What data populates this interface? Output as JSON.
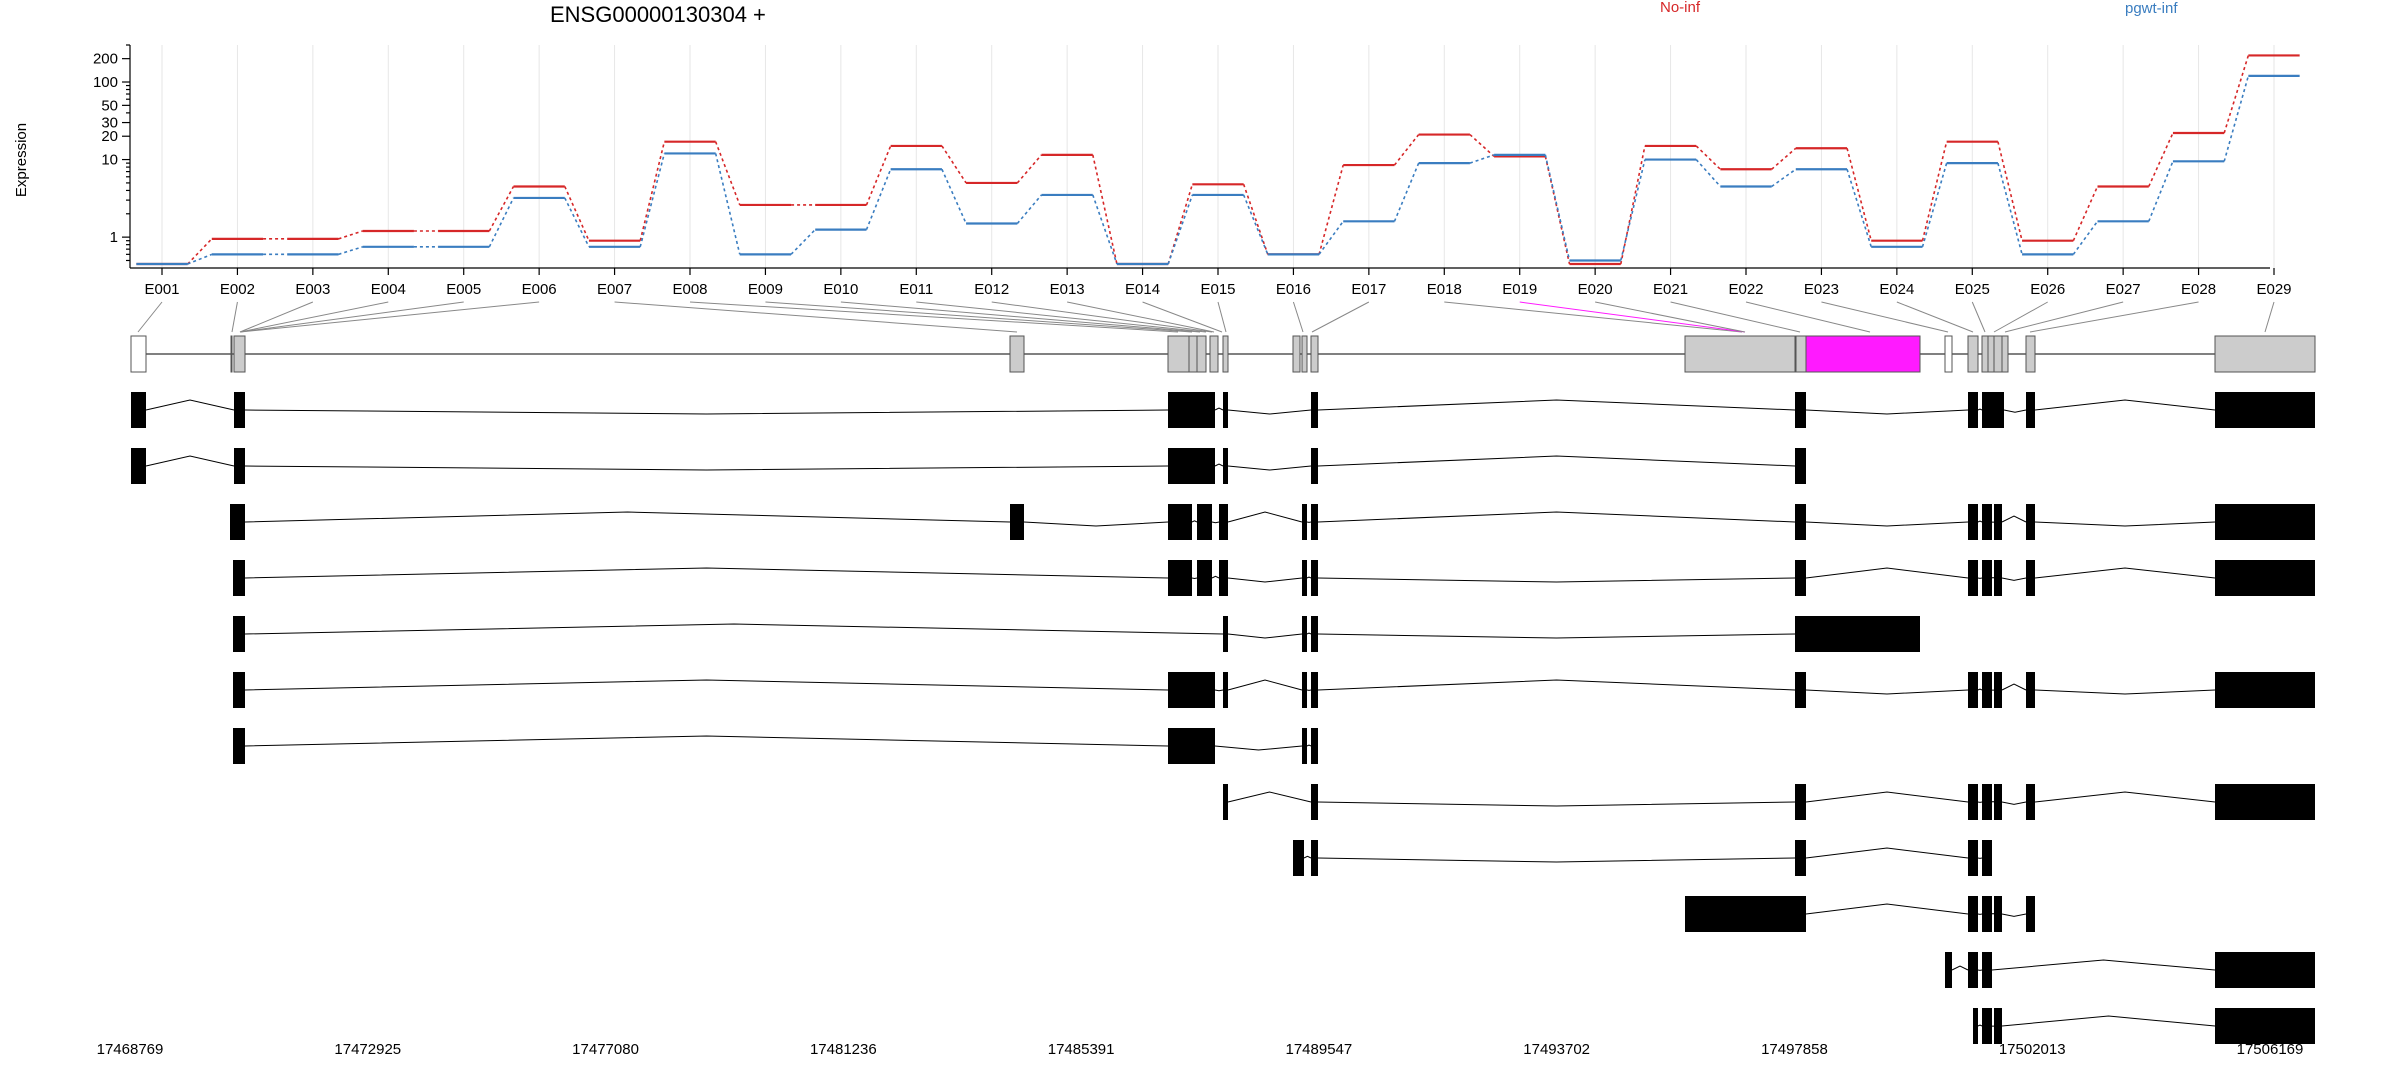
{
  "chart_data": {
    "type": "line",
    "title": "ENSG00000130304 +",
    "ylabel": "Expression",
    "xlabel": "",
    "y_scale": "log",
    "y_ticks": [
      1,
      10,
      20,
      30,
      50,
      100,
      200
    ],
    "ylim": [
      0.4,
      300
    ],
    "grid": true,
    "legend_position": "top",
    "categories": [
      "E001",
      "E002",
      "E003",
      "E004",
      "E005",
      "E006",
      "E007",
      "E008",
      "E009",
      "E010",
      "E011",
      "E012",
      "E013",
      "E014",
      "E015",
      "E016",
      "E017",
      "E018",
      "E019",
      "E020",
      "E021",
      "E022",
      "E023",
      "E024",
      "E025",
      "E026",
      "E027",
      "E028",
      "E029"
    ],
    "series": [
      {
        "name": "No-inf",
        "color": "#d62728",
        "values": [
          0.45,
          0.95,
          0.95,
          1.2,
          1.2,
          4.5,
          0.9,
          17,
          2.6,
          2.6,
          15,
          5,
          11.5,
          0.45,
          4.8,
          0.6,
          8.5,
          21,
          11,
          0.45,
          15,
          7.5,
          14,
          0.9,
          17,
          0.9,
          4.5,
          22,
          220
        ]
      },
      {
        "name": "pgwt-inf",
        "color": "#3a7dc0",
        "values": [
          0.45,
          0.6,
          0.6,
          0.75,
          0.75,
          3.2,
          0.75,
          12,
          0.6,
          1.25,
          7.5,
          1.5,
          3.5,
          0.45,
          3.5,
          0.6,
          1.6,
          9,
          11.5,
          0.5,
          10,
          4.5,
          7.5,
          0.75,
          9,
          0.6,
          1.6,
          9.5,
          120
        ]
      }
    ],
    "genomic_ticks": [
      "17468769",
      "17472925",
      "17477080",
      "17481236",
      "17485391",
      "17489547",
      "17493702",
      "17497858",
      "17502013",
      "17506169"
    ],
    "highlight_color": "#ff1aff"
  }
}
